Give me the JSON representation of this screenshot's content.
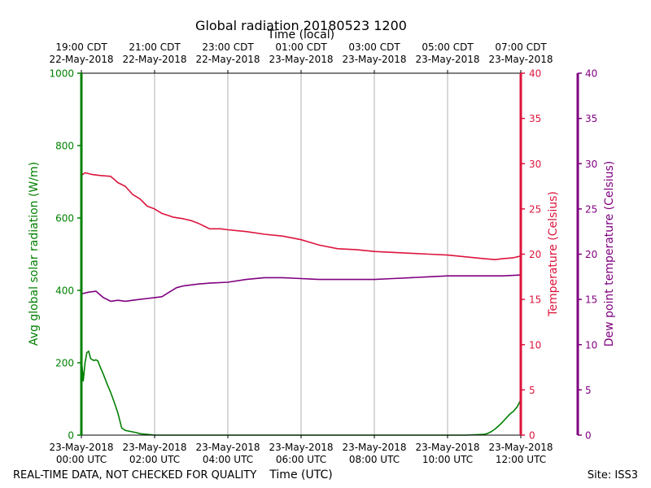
{
  "chart_data": {
    "type": "line",
    "title": "Global radiation 20180523 1200",
    "xlabel": "Time (UTC)",
    "x2label": "Time (local)",
    "x_ticks_utc": [
      {
        "date": "23-May-2018",
        "time": "00:00 UTC"
      },
      {
        "date": "23-May-2018",
        "time": "02:00 UTC"
      },
      {
        "date": "23-May-2018",
        "time": "04:00 UTC"
      },
      {
        "date": "23-May-2018",
        "time": "06:00 UTC"
      },
      {
        "date": "23-May-2018",
        "time": "08:00 UTC"
      },
      {
        "date": "23-May-2018",
        "time": "10:00 UTC"
      },
      {
        "date": "23-May-2018",
        "time": "12:00 UTC"
      }
    ],
    "x_ticks_local": [
      {
        "time": "19:00 CDT",
        "date": "22-May-2018"
      },
      {
        "time": "21:00 CDT",
        "date": "22-May-2018"
      },
      {
        "time": "23:00 CDT",
        "date": "22-May-2018"
      },
      {
        "time": "01:00 CDT",
        "date": "23-May-2018"
      },
      {
        "time": "03:00 CDT",
        "date": "23-May-2018"
      },
      {
        "time": "05:00 CDT",
        "date": "23-May-2018"
      },
      {
        "time": "07:00 CDT",
        "date": "23-May-2018"
      }
    ],
    "xlim_hours_utc": [
      0,
      12
    ],
    "grid": "vertical",
    "axes": {
      "left": {
        "label": "Avg global solar radiation (W/m)",
        "ylim": [
          0,
          1000
        ],
        "ticks": [
          0,
          200,
          400,
          600,
          800,
          1000
        ],
        "color": "#008000"
      },
      "right1": {
        "label": "Temperature (Celsius)",
        "ylim": [
          0,
          40
        ],
        "ticks": [
          0,
          5,
          10,
          15,
          20,
          25,
          30,
          35,
          40
        ],
        "color": "#dc143c"
      },
      "right2": {
        "label": "Dew point temperature (Celsius)",
        "ylim": [
          0,
          40
        ],
        "ticks": [
          0,
          5,
          10,
          15,
          20,
          25,
          30,
          35,
          40
        ],
        "color": "#800080"
      }
    },
    "series": [
      {
        "key": "radiation",
        "axis": "left",
        "color": "#008000",
        "x": [
          0.0,
          0.02,
          0.05,
          0.1,
          0.15,
          0.2,
          0.25,
          0.3,
          0.35,
          0.4,
          0.45,
          0.5,
          0.6,
          0.7,
          0.8,
          0.9,
          1.0,
          1.1,
          1.2,
          1.3,
          1.4,
          1.5,
          1.6,
          1.7,
          1.8,
          1.9,
          2.0,
          2.5,
          3.0,
          4.0,
          5.0,
          6.0,
          7.0,
          8.0,
          9.0,
          10.0,
          10.5,
          11.0,
          11.1,
          11.2,
          11.3,
          11.4,
          11.5,
          11.6,
          11.7,
          11.8,
          11.9,
          12.0
        ],
        "y": [
          0,
          190,
          150,
          200,
          228,
          232,
          212,
          208,
          206,
          208,
          205,
          192,
          168,
          142,
          118,
          90,
          60,
          20,
          13,
          11,
          9,
          7,
          4,
          3,
          2,
          1,
          0,
          0,
          0,
          0,
          0,
          0,
          0,
          0,
          0,
          0,
          0,
          2,
          5,
          10,
          17,
          26,
          36,
          47,
          58,
          66,
          78,
          98
        ]
      },
      {
        "key": "temperature",
        "axis": "right1",
        "color": "#dc143c",
        "x": [
          0.0,
          0.1,
          0.2,
          0.3,
          0.5,
          0.8,
          1.0,
          1.2,
          1.4,
          1.6,
          1.8,
          2.0,
          2.2,
          2.5,
          2.8,
          3.0,
          3.2,
          3.5,
          3.8,
          4.0,
          4.5,
          5.0,
          5.5,
          6.0,
          6.5,
          7.0,
          7.5,
          8.0,
          8.5,
          9.0,
          9.5,
          10.0,
          10.5,
          11.0,
          11.3,
          11.5,
          11.8,
          12.0
        ],
        "y": [
          28.7,
          29.0,
          28.9,
          28.8,
          28.7,
          28.6,
          27.9,
          27.5,
          26.6,
          26.1,
          25.3,
          25.0,
          24.5,
          24.1,
          23.9,
          23.7,
          23.4,
          22.8,
          22.8,
          22.7,
          22.5,
          22.2,
          22.0,
          21.6,
          21.0,
          20.6,
          20.5,
          20.3,
          20.2,
          20.1,
          20.0,
          19.9,
          19.7,
          19.5,
          19.4,
          19.5,
          19.6,
          19.8
        ]
      },
      {
        "key": "dewpoint",
        "axis": "right2",
        "color": "#800080",
        "x": [
          0.0,
          0.2,
          0.4,
          0.6,
          0.8,
          1.0,
          1.2,
          1.4,
          1.6,
          1.8,
          2.0,
          2.2,
          2.4,
          2.6,
          2.8,
          3.0,
          3.2,
          3.5,
          4.0,
          4.5,
          5.0,
          5.5,
          6.0,
          6.5,
          7.0,
          7.5,
          8.0,
          8.5,
          9.0,
          9.5,
          10.0,
          10.5,
          11.0,
          11.5,
          12.0
        ],
        "y": [
          15.6,
          15.8,
          15.9,
          15.2,
          14.8,
          14.9,
          14.8,
          14.9,
          15.0,
          15.1,
          15.2,
          15.3,
          15.8,
          16.3,
          16.5,
          16.6,
          16.7,
          16.8,
          16.9,
          17.2,
          17.4,
          17.4,
          17.3,
          17.2,
          17.2,
          17.2,
          17.2,
          17.3,
          17.4,
          17.5,
          17.6,
          17.6,
          17.6,
          17.6,
          17.7
        ]
      }
    ]
  },
  "footer": {
    "left_note": "REAL-TIME DATA, NOT CHECKED FOR QUALITY",
    "site": "Site: ISS3"
  }
}
